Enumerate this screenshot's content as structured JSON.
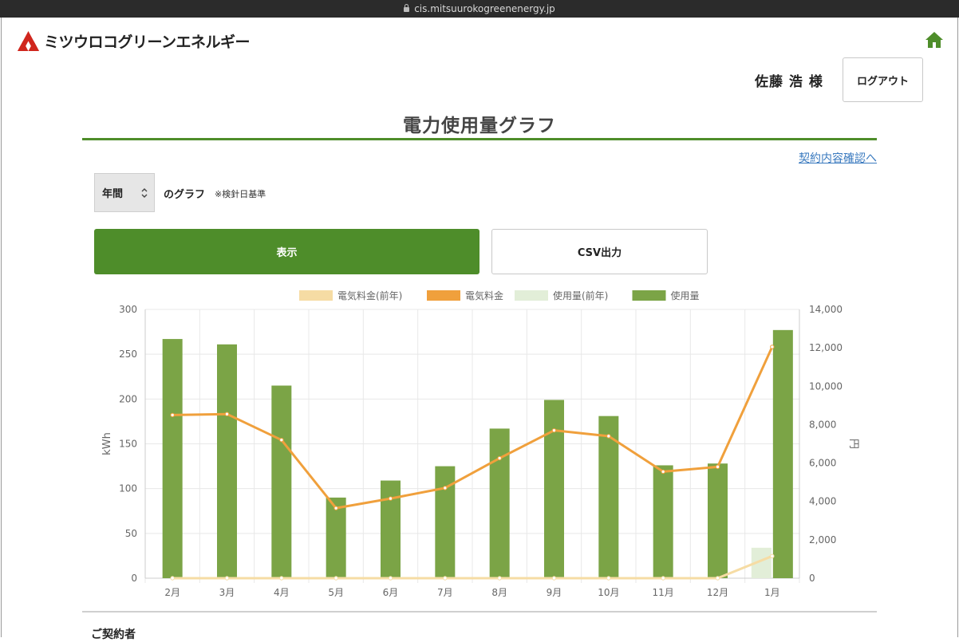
{
  "browser": {
    "url": "cis.mitsuurokogreenenergy.jp"
  },
  "header": {
    "brand": "ミツウロコグリーンエネルギー",
    "user_name": "佐藤 浩 様",
    "logout_label": "ログアウト"
  },
  "page": {
    "title": "電力使用量グラフ",
    "contract_link": "契約内容確認へ",
    "period_select": {
      "selected": "年間"
    },
    "graph_label": "のグラフ",
    "graph_note": "※検針日基準",
    "show_button": "表示",
    "csv_button": "CSV出力",
    "section_heading": "ご契約者"
  },
  "colors": {
    "accent": "#4e8d2a",
    "usage": "#7ba446",
    "usage_prev": "#e2eed8",
    "charge": "#f0a03c",
    "charge_prev": "#f6dca4",
    "link": "#3a7abf"
  },
  "chart_data": {
    "type": "bar",
    "categories": [
      "2月",
      "3月",
      "4月",
      "5月",
      "6月",
      "7月",
      "8月",
      "9月",
      "10月",
      "11月",
      "12月",
      "1月"
    ],
    "series": [
      {
        "name": "電気料金(前年)",
        "type": "line",
        "axis": "right",
        "color": "#f6dca4",
        "values": [
          0,
          0,
          0,
          0,
          0,
          0,
          0,
          0,
          0,
          0,
          0,
          1150
        ]
      },
      {
        "name": "電気料金",
        "type": "line",
        "axis": "right",
        "color": "#f0a03c",
        "values": [
          8500,
          8550,
          7200,
          3650,
          4150,
          4700,
          6250,
          7700,
          7400,
          5550,
          5800,
          12050
        ]
      },
      {
        "name": "使用量(前年)",
        "type": "bar",
        "axis": "left",
        "color": "#e2eed8",
        "values": [
          0,
          0,
          0,
          0,
          0,
          0,
          0,
          0,
          0,
          0,
          0,
          34
        ]
      },
      {
        "name": "使用量",
        "type": "bar",
        "axis": "left",
        "color": "#7ba446",
        "values": [
          267,
          261,
          215,
          90,
          109,
          125,
          167,
          199,
          181,
          126,
          128,
          277
        ]
      }
    ],
    "ylabel": "kWh",
    "y2label": "円",
    "ylim": [
      0,
      300
    ],
    "y2lim": [
      0,
      14000
    ],
    "yticks": [
      "0",
      "50",
      "100",
      "150",
      "200",
      "250",
      "300"
    ],
    "y2ticks": [
      "0",
      "2,000",
      "4,000",
      "6,000",
      "8,000",
      "10,000",
      "12,000",
      "14,000"
    ],
    "grid": true,
    "legend_position": "top"
  }
}
